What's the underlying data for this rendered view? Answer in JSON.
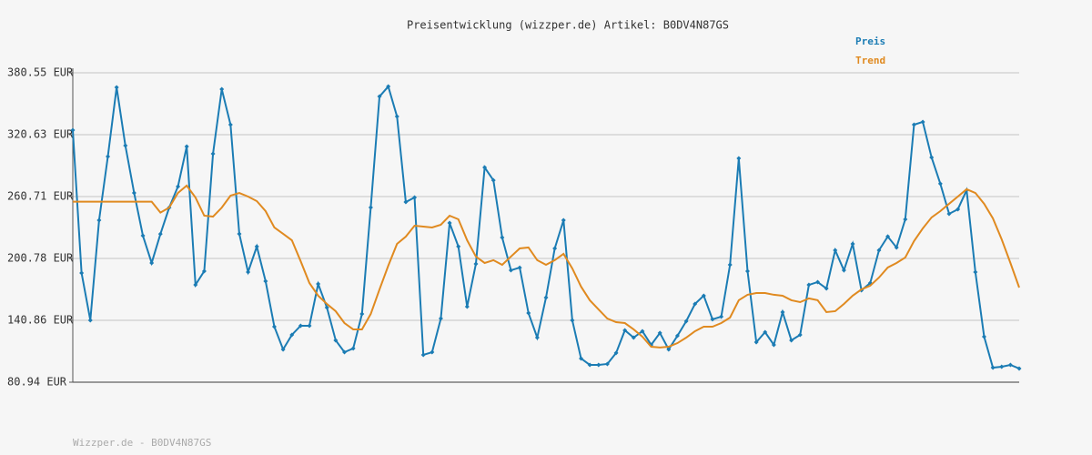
{
  "chart_data": {
    "type": "line",
    "title": "Preisentwicklung (wizzper.de) Artikel: B0DV4N87GS",
    "footer": "Wizzper.de - B0DV4N87GS",
    "ylim": [
      80.94,
      380.55
    ],
    "yticks": [
      {
        "value": 80.94,
        "label": "80.94 EUR"
      },
      {
        "value": 140.86,
        "label": "140.86 EUR"
      },
      {
        "value": 200.78,
        "label": "200.78 EUR"
      },
      {
        "value": 260.71,
        "label": "260.71 EUR"
      },
      {
        "value": 320.63,
        "label": "320.63 EUR"
      },
      {
        "value": 380.55,
        "label": "380.55 EUR"
      }
    ],
    "grid": true,
    "legend": "top-right",
    "series": [
      {
        "name": "Preis",
        "color": "#1b7cb4",
        "markers": true,
        "values": [
          325,
          186.7,
          140.9,
          237.8,
          299.5,
          366.5,
          310,
          264.2,
          222.8,
          196.4,
          224.5,
          250,
          270.4,
          309.2,
          175.2,
          188.5,
          302.1,
          364.7,
          330.3,
          224.6,
          187.6,
          212.3,
          178.8,
          134.7,
          112.7,
          126.8,
          135.6,
          135.6,
          176.1,
          153.2,
          121.5,
          110,
          113.6,
          147,
          250.1,
          357.6,
          367.3,
          338.2,
          255.4,
          259.8,
          107.4,
          110,
          142.6,
          235.1,
          212.3,
          154.1,
          195.5,
          288.9,
          276.5,
          221,
          189.3,
          191.9,
          147.9,
          124.1,
          162.9,
          210.5,
          237.8,
          140.9,
          103.9,
          97.7,
          97.7,
          98.6,
          109.2,
          131.2,
          124.1,
          130.3,
          117.1,
          128.6,
          112.7,
          125.9,
          140,
          156.7,
          164.7,
          141.8,
          144.4,
          194.6,
          297.7,
          188.5,
          119.7,
          129.4,
          117.1,
          148.8,
          121.5,
          126.8,
          175.2,
          177.9,
          171.7,
          208.7,
          189.3,
          214.9,
          169.9,
          177,
          208.7,
          222,
          211.4,
          238.7,
          330.3,
          333,
          298.6,
          273.1,
          244,
          248.4,
          266.9,
          187.6,
          125,
          95,
          95.9,
          97.7,
          94.2
        ]
      },
      {
        "name": "Trend",
        "color": "#e08a20",
        "markers": false,
        "values": [
          255.7,
          255.7,
          255.7,
          255.7,
          255.7,
          255.7,
          255.7,
          255.7,
          255.7,
          255.7,
          245.2,
          250,
          264.2,
          271.3,
          259.8,
          242.2,
          241.3,
          250,
          261.6,
          264.2,
          260.7,
          256.3,
          246.6,
          230.8,
          224.6,
          218.4,
          198.2,
          177,
          164.7,
          156.7,
          149.7,
          138.2,
          132.1,
          132.1,
          147,
          170.8,
          193.7,
          214.9,
          221.9,
          232.5,
          231.6,
          230.8,
          233.4,
          242.2,
          238.7,
          218.4,
          202.6,
          196.4,
          199.1,
          194.6,
          202.6,
          210.5,
          211.4,
          199.1,
          194.6,
          199.1,
          205.2,
          191.1,
          173.5,
          160.3,
          151.4,
          142.6,
          139.1,
          138.2,
          132.1,
          125,
          115.3,
          114.5,
          115.3,
          118.8,
          124.1,
          130.3,
          134.7,
          134.7,
          138.2,
          143.5,
          160.3,
          165.6,
          167.3,
          167.3,
          165.6,
          164.7,
          160.3,
          158.5,
          162.1,
          160.3,
          148.8,
          149.7,
          156.7,
          164.7,
          170.8,
          174.4,
          182.3,
          192,
          196.4,
          201.7,
          217.6,
          229.9,
          240.5,
          246.6,
          253.7,
          260.7,
          267.8,
          264.2,
          253.7,
          239.6,
          219.3,
          196.4,
          172.6
        ]
      }
    ]
  }
}
